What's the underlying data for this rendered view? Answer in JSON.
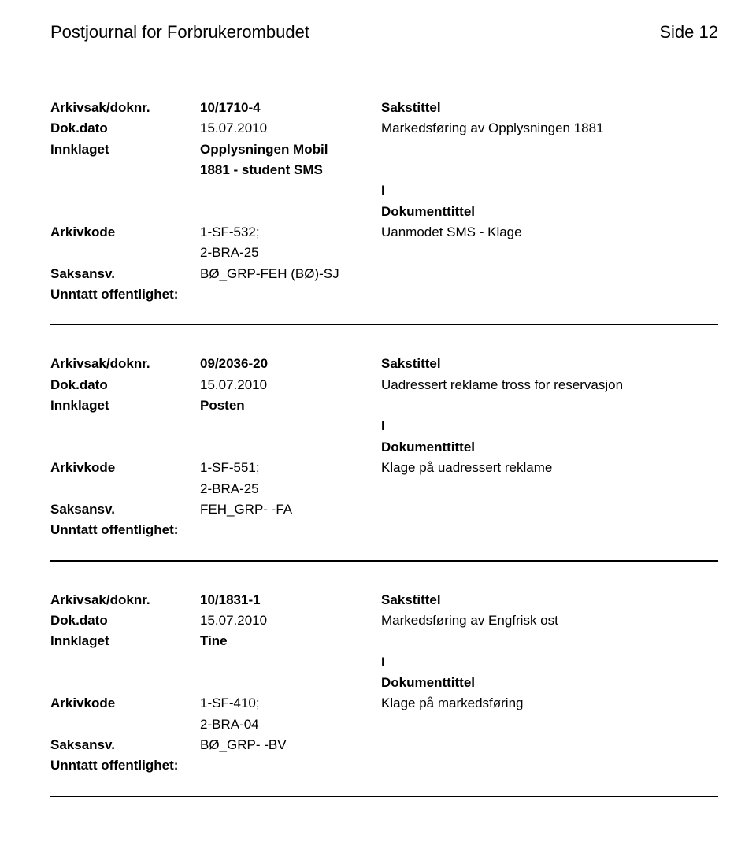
{
  "header": {
    "title": "Postjournal for Forbrukerombudet",
    "page_number": "Side 12"
  },
  "labels": {
    "arkivsak": "Arkivsak/doknr.",
    "dokdato": "Dok.dato",
    "innklaget": "Innklaget",
    "arkivkode": "Arkivkode",
    "saksansv": "Saksansv.",
    "unntatt": "Unntatt offentlighet:",
    "sakstittel": "Sakstittel",
    "dokumenttittel": "Dokumenttittel"
  },
  "records": [
    {
      "arkivsak": "10/1710-4",
      "dokdato": "15.07.2010",
      "sakstittel": "Markedsføring av Opplysningen 1881",
      "innklaget_lines": [
        "Opplysningen Mobil",
        "1881 - student SMS"
      ],
      "io": "I",
      "arkivkode_lines": [
        "1-SF-532;",
        "2-BRA-25"
      ],
      "dok_text": "Uanmodet SMS - Klage",
      "saksansv": "BØ_GRP-FEH (BØ)-SJ",
      "unntatt": ""
    },
    {
      "arkivsak": "09/2036-20",
      "dokdato": "15.07.2010",
      "sakstittel": "Uadressert reklame tross for reservasjon",
      "innklaget_lines": [
        "Posten"
      ],
      "io": "I",
      "arkivkode_lines": [
        "1-SF-551;",
        "2-BRA-25"
      ],
      "dok_text": "Klage på uadressert reklame",
      "saksansv": "FEH_GRP- -FA",
      "unntatt": ""
    },
    {
      "arkivsak": "10/1831-1",
      "dokdato": "15.07.2010",
      "sakstittel": "Markedsføring av Engfrisk ost",
      "innklaget_lines": [
        "Tine"
      ],
      "io": "I",
      "arkivkode_lines": [
        "1-SF-410;",
        "2-BRA-04"
      ],
      "dok_text": "Klage på markedsføring",
      "saksansv": "BØ_GRP- -BV",
      "unntatt": ""
    }
  ]
}
